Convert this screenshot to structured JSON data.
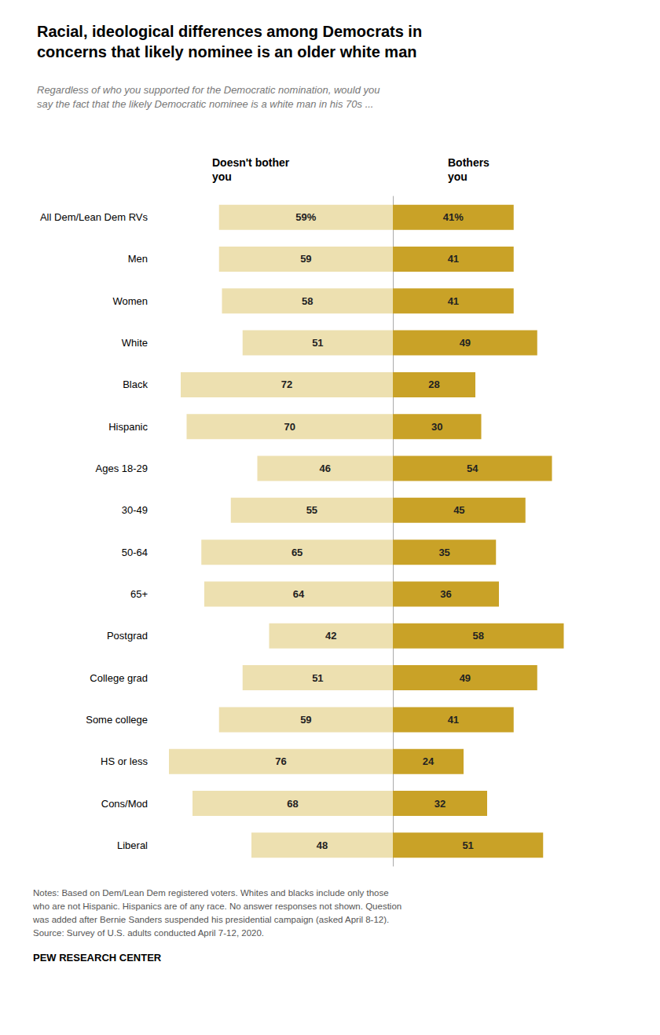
{
  "chart_data": {
    "type": "bar",
    "orientation": "horizontal",
    "title": "Racial, ideological differences among Democrats in\nconcerns that likely nominee is an older white man",
    "subtitle": "Regardless of who you supported for the Democratic nomination, would you\nsay the fact that the likely Democratic nominee is a white man in his 70s ...",
    "categories": [
      "All Dem/Lean Dem RVs",
      "Men",
      "Women",
      "White",
      "Black",
      "Hispanic",
      "Ages 18-29",
      "30-49",
      "50-64",
      "65+",
      "Postgrad",
      "College grad",
      "Some college",
      "HS or less",
      "Cons/Mod",
      "Liberal"
    ],
    "series": [
      {
        "name": "Doesn't bother\nyou",
        "color": "#ede0b0",
        "values": [
          59,
          59,
          58,
          51,
          72,
          70,
          46,
          55,
          65,
          64,
          42,
          51,
          59,
          76,
          68,
          48
        ],
        "value_labels": [
          "59%",
          "59",
          "58",
          "51",
          "72",
          "70",
          "46",
          "55",
          "65",
          "64",
          "42",
          "51",
          "59",
          "76",
          "68",
          "48"
        ]
      },
      {
        "name": "Bothers\nyou",
        "color": "#c9a227",
        "values": [
          41,
          41,
          41,
          49,
          28,
          30,
          54,
          45,
          35,
          36,
          58,
          49,
          41,
          24,
          32,
          51
        ],
        "value_labels": [
          "41%",
          "41",
          "41",
          "49",
          "28",
          "30",
          "54",
          "45",
          "35",
          "36",
          "58",
          "49",
          "41",
          "24",
          "32",
          "51"
        ]
      }
    ],
    "xlim": [
      0,
      80
    ],
    "data_labels": true,
    "tick_labels": "y",
    "grid": false,
    "annotations": [
      "Notes: Based on Dem/Lean Dem registered voters. Whites and blacks include only those\nwho are not Hispanic. Hispanics are of any race. No answer responses not shown. Question\nwas added after Bernie Sanders suspended his presidential campaign (asked April 8-12).\nSource: Survey of U.S. adults conducted April 7-12, 2020.",
      "PEW RESEARCH CENTER"
    ]
  }
}
